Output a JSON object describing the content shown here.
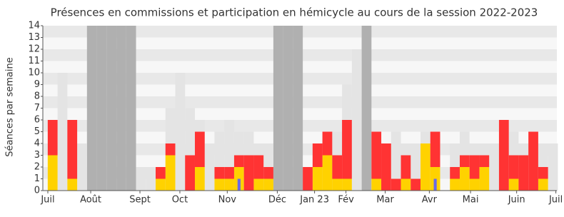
{
  "chart_data": {
    "type": "bar",
    "title": "Présences en commissions et participation en hémicycle au cours de la session 2022-2023",
    "y_label": "Séances par semaine",
    "x": [
      0,
      1,
      2,
      3,
      4,
      5,
      6,
      7,
      8,
      9,
      10,
      11,
      12,
      13,
      14,
      15,
      16,
      17,
      18,
      19,
      20,
      21,
      22,
      23,
      24,
      25,
      26,
      27,
      28,
      29,
      30,
      31,
      32,
      33,
      34,
      35,
      36,
      37,
      38,
      39,
      40,
      41,
      42,
      43,
      44,
      45,
      46,
      47,
      48,
      49,
      50,
      51
    ],
    "xlim": [
      -1,
      51.4
    ],
    "xticks": [
      {
        "value": -0.49,
        "label": "Juil"
      },
      {
        "value": 3.88,
        "label": "Août"
      },
      {
        "value": 8.9,
        "label": "Sept"
      },
      {
        "value": 12.97,
        "label": "Oct"
      },
      {
        "value": 17.8,
        "label": "Nov"
      },
      {
        "value": 22.9,
        "label": "Déc"
      },
      {
        "value": 26.7,
        "label": "Jan 23"
      },
      {
        "value": 29.9,
        "label": "Fév"
      },
      {
        "value": 33.9,
        "label": "Mar"
      },
      {
        "value": 38.4,
        "label": "Avr"
      },
      {
        "value": 42.6,
        "label": "Mai"
      },
      {
        "value": 47.3,
        "label": "Juin"
      },
      {
        "value": 51.3,
        "label": "Juil"
      }
    ],
    "ylim": [
      0,
      14
    ],
    "yticks": [
      0,
      1,
      2,
      3,
      4,
      5,
      6,
      7,
      8,
      9,
      10,
      11,
      12,
      13,
      14
    ],
    "grid": true,
    "series": [
      {
        "color": "#b0b0b0",
        "stacked": false,
        "values": [
          null,
          null,
          null,
          null,
          14,
          14,
          14,
          14,
          14,
          null,
          null,
          null,
          null,
          null,
          null,
          null,
          null,
          null,
          null,
          null,
          null,
          null,
          null,
          14,
          14,
          14,
          null,
          null,
          null,
          null,
          null,
          null,
          14,
          null,
          null,
          null,
          null,
          null,
          null,
          null,
          null,
          null,
          null,
          null,
          null,
          null,
          null,
          null,
          null,
          null,
          null,
          null
        ]
      },
      {
        "color": "#e4e4e4",
        "stacked": false,
        "values": [
          6,
          10,
          6,
          4,
          null,
          null,
          null,
          null,
          null,
          2,
          2,
          2,
          7,
          10,
          7,
          6,
          4,
          5,
          6,
          5,
          5,
          4,
          4,
          null,
          null,
          null,
          2,
          4,
          5,
          5,
          9,
          12,
          null,
          5,
          4,
          5,
          4,
          4,
          5,
          5,
          0,
          4,
          5,
          4,
          4,
          4,
          6,
          5,
          4,
          4,
          4,
          4
        ]
      },
      {
        "color": "#ffd200",
        "stacked": true,
        "values": [
          3,
          0,
          1,
          0,
          null,
          null,
          null,
          null,
          null,
          0,
          0,
          1,
          3,
          0,
          0,
          2,
          0,
          1,
          1,
          2,
          0,
          1,
          1,
          null,
          null,
          null,
          0,
          2,
          3,
          1,
          1,
          0,
          null,
          1,
          0,
          0,
          1,
          0,
          4,
          2,
          0,
          1,
          2,
          1,
          2,
          0,
          0,
          1,
          0,
          0,
          1,
          0
        ]
      },
      {
        "color": "#ff3333",
        "stacked": true,
        "values": [
          3,
          0,
          5,
          0,
          null,
          null,
          null,
          null,
          null,
          0,
          0,
          1,
          1,
          0,
          3,
          3,
          0,
          1,
          1,
          1,
          3,
          2,
          1,
          null,
          null,
          null,
          2,
          2,
          2,
          2,
          5,
          0,
          null,
          4,
          4,
          1,
          2,
          1,
          0,
          3,
          0,
          1,
          1,
          2,
          1,
          0,
          6,
          2,
          3,
          5,
          1,
          0
        ]
      },
      {
        "color": "#6a6ae6",
        "stacked": false,
        "thin": true,
        "values": [
          0,
          0,
          0,
          0,
          null,
          null,
          null,
          null,
          null,
          0,
          0,
          0,
          0,
          0,
          0,
          0,
          0,
          0,
          0,
          1,
          0,
          0,
          0,
          null,
          null,
          null,
          0,
          0,
          0,
          0,
          0,
          0,
          null,
          0,
          0,
          0,
          0,
          0,
          0,
          1,
          0,
          0,
          0,
          0,
          0,
          0,
          0,
          0,
          0,
          0,
          0,
          0
        ]
      }
    ]
  }
}
